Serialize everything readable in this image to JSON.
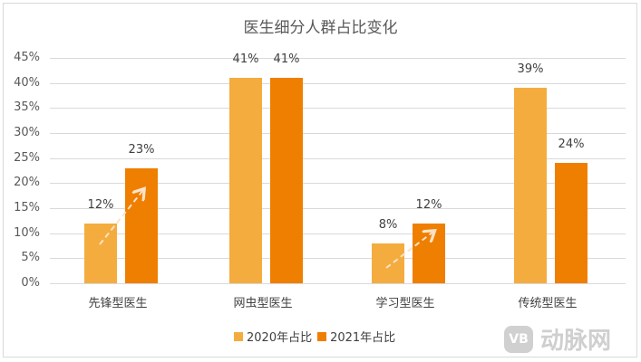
{
  "chart_data": {
    "type": "bar",
    "title": "医生细分人群占比变化",
    "categories": [
      "先锋型医生",
      "网虫型医生",
      "学习型医生",
      "传统型医生"
    ],
    "series": [
      {
        "name": "2020年占比",
        "values": [
          12,
          41,
          8,
          39
        ],
        "color": "#F4AC3E"
      },
      {
        "name": "2021年占比",
        "values": [
          23,
          41,
          12,
          24
        ],
        "color": "#EF7F00"
      }
    ],
    "value_labels": {
      "2020": [
        "12%",
        "41%",
        "8%",
        "39%"
      ],
      "2021": [
        "23%",
        "41%",
        "12%",
        "24%"
      ]
    },
    "xlabel": "",
    "ylabel": "",
    "ylim": [
      0,
      45
    ],
    "yticks": [
      "0%",
      "5%",
      "10%",
      "15%",
      "20%",
      "25%",
      "30%",
      "35%",
      "40%",
      "45%"
    ],
    "grid": true,
    "legend_position": "bottom",
    "annotations": [
      "dashed arrow 先锋型医生 2020→2021",
      "dashed arrow 学习型医生 2020→2021"
    ]
  },
  "legend": {
    "s1": "2020年占比",
    "s2": "2021年占比"
  },
  "watermark": {
    "logo": "VB",
    "text": "动脉网"
  }
}
